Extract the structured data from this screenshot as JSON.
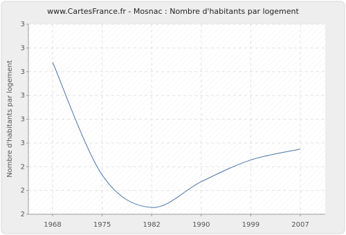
{
  "chart_data": {
    "type": "line",
    "title": "www.CartesFrance.fr - Mosnac : Nombre d'habitants par logement",
    "y_label": "Nombre d'habitants par logement",
    "categories": [
      "1968",
      "1975",
      "1982",
      "1990",
      "1999",
      "2007"
    ],
    "series": [
      {
        "name": "Mosnac",
        "color": "#4a73a8",
        "values": [
          3.12,
          2.29,
          2.05,
          2.24,
          2.4,
          2.48
        ]
      }
    ],
    "ylim": [
      2.0,
      3.4
    ],
    "yticks": [
      {
        "value": 2.0,
        "label": "2"
      },
      {
        "value": 2.175,
        "label": "2"
      },
      {
        "value": 2.35,
        "label": "2"
      },
      {
        "value": 2.525,
        "label": "3"
      },
      {
        "value": 2.7,
        "label": "3"
      },
      {
        "value": 2.875,
        "label": "3"
      },
      {
        "value": 3.05,
        "label": "3"
      },
      {
        "value": 3.225,
        "label": "3"
      },
      {
        "value": 3.4,
        "label": "3"
      }
    ],
    "grid": true
  }
}
